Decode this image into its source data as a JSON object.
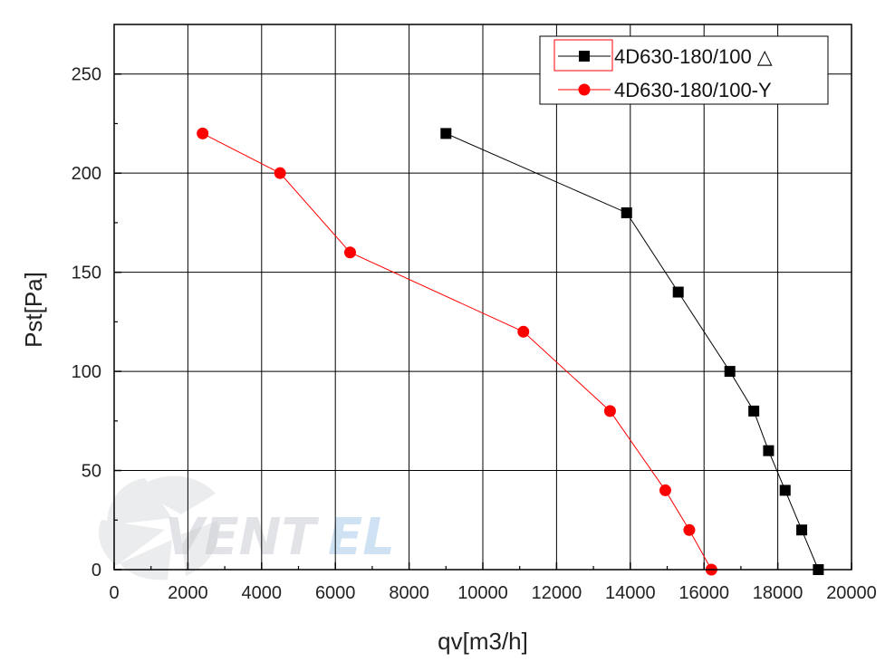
{
  "chart_data": {
    "type": "line",
    "title": "",
    "xlabel": "qv[m3/h]",
    "ylabel": "Pst[Pa]",
    "xlim": [
      0,
      20000
    ],
    "ylim": [
      0,
      275
    ],
    "grid": true,
    "legend_position": "top-right",
    "xticks": [
      "0",
      "2000",
      "4000",
      "6000",
      "8000",
      "10000",
      "12000",
      "14000",
      "16000",
      "18000",
      "20000"
    ],
    "yticks": [
      "0",
      "50",
      "100",
      "150",
      "200",
      "250"
    ],
    "series": [
      {
        "name": "4D630-180/100 △",
        "color": "#000000",
        "marker": "square",
        "x": [
          9000,
          13900,
          15300,
          16700,
          17350,
          17750,
          18200,
          18650,
          19100
        ],
        "y": [
          220,
          180,
          140,
          100,
          80,
          60,
          40,
          20,
          0
        ]
      },
      {
        "name": "4D630-180/100-Y",
        "color": "#ff0000",
        "marker": "circle",
        "x": [
          2400,
          4500,
          6400,
          11100,
          13450,
          14950,
          15600,
          16200
        ],
        "y": [
          220,
          200,
          160,
          120,
          80,
          40,
          20,
          0
        ]
      }
    ]
  },
  "watermark": {
    "text_part1": "VENT",
    "text_part2": "EL",
    "color1": "#c9ccd1",
    "color2": "#b9d6ee"
  }
}
